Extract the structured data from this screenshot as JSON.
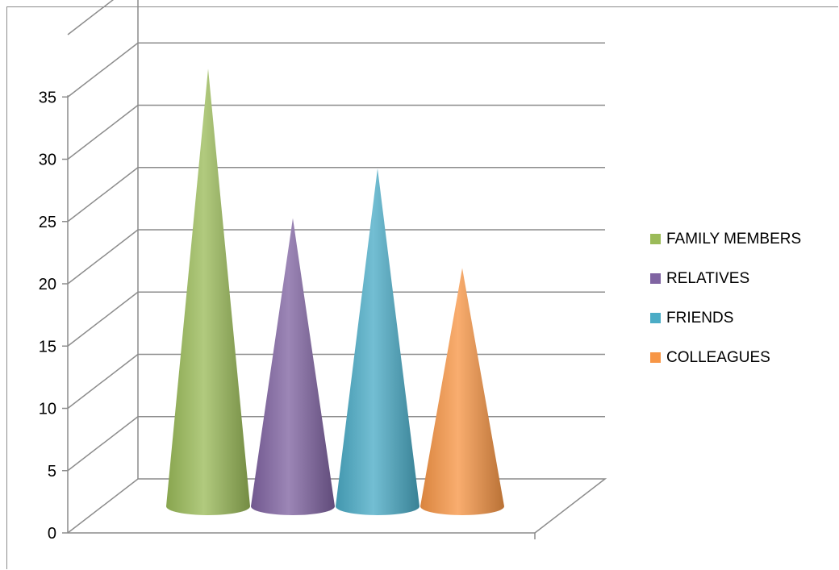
{
  "chart_data": {
    "type": "bar",
    "shape": "3d-cone",
    "series": [
      {
        "name": "FAMILY MEMBERS",
        "value": 35,
        "color": "#9bbb59"
      },
      {
        "name": "RELATIVES",
        "value": 23,
        "color": "#8064a2"
      },
      {
        "name": "FRIENDS",
        "value": 27,
        "color": "#4bacc6"
      },
      {
        "name": "COLLEAGUES",
        "value": 19,
        "color": "#f79646"
      }
    ],
    "y_ticks": [
      "0",
      "5",
      "10",
      "15",
      "20",
      "25",
      "30",
      "35"
    ],
    "ylim": [
      0,
      35
    ],
    "grid": true,
    "legend_position": "right"
  }
}
